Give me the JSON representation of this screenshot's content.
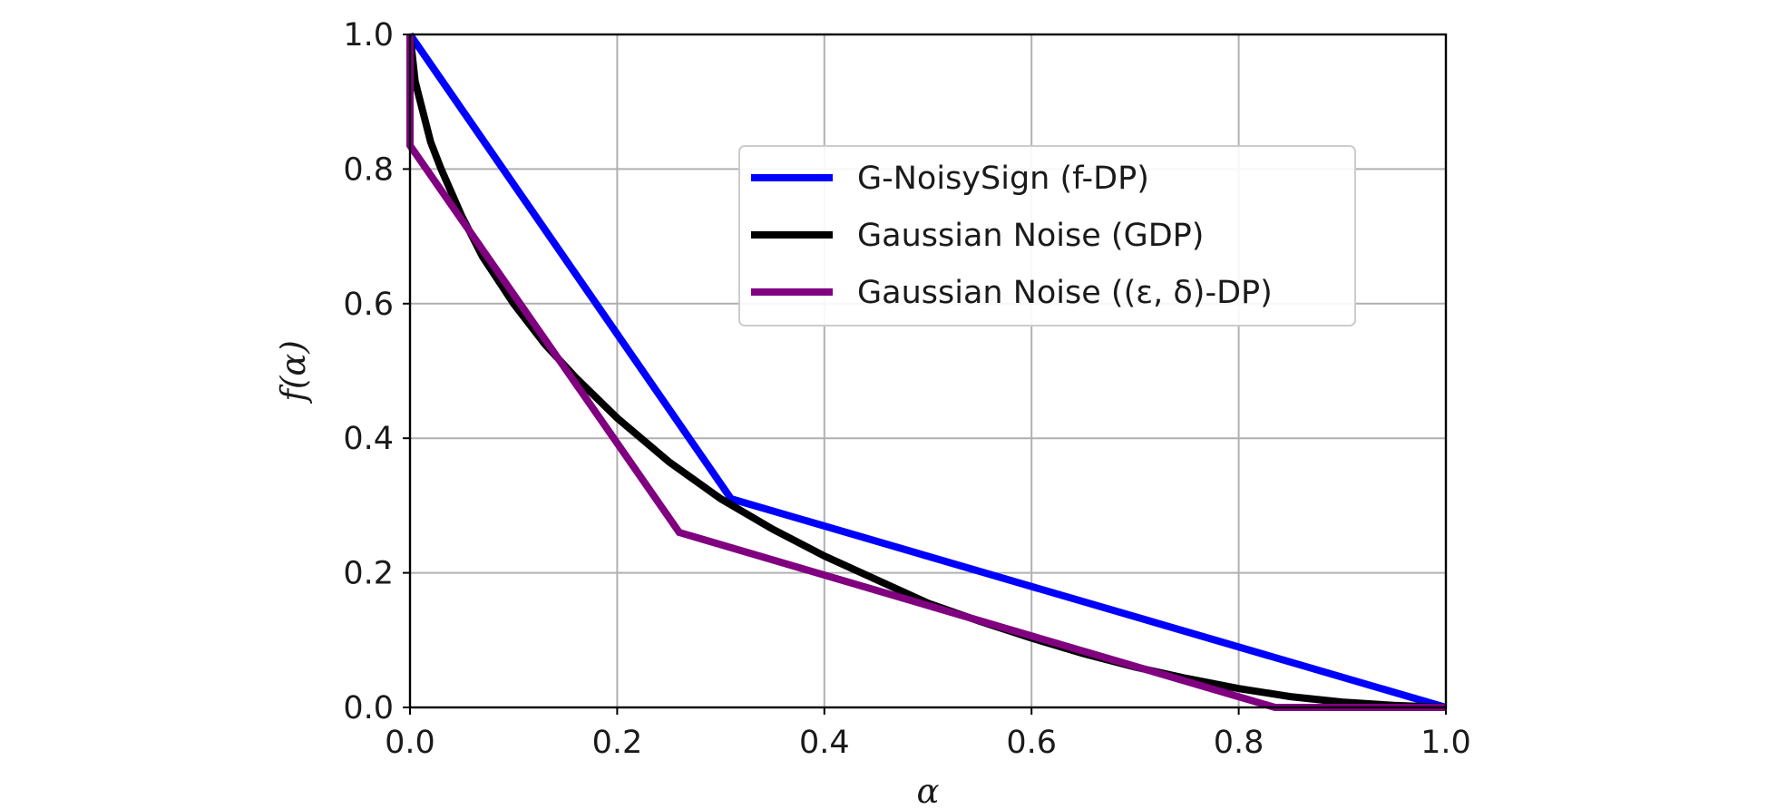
{
  "chart_data": {
    "type": "line",
    "title": "",
    "xlabel": "α",
    "ylabel": "f(α)",
    "xlim": [
      0.0,
      1.0
    ],
    "ylim": [
      0.0,
      1.0
    ],
    "x_ticks": [
      "0.0",
      "0.2",
      "0.4",
      "0.6",
      "0.8",
      "1.0"
    ],
    "y_ticks": [
      "0.0",
      "0.2",
      "0.4",
      "0.6",
      "0.8",
      "1.0"
    ],
    "grid": true,
    "legend_position": "upper-right",
    "series": [
      {
        "name": "G-NoisySign (f-DP)",
        "color": "#0000ff",
        "x": [
          0.0,
          0.31,
          1.0
        ],
        "y": [
          1.0,
          0.31,
          0.0
        ]
      },
      {
        "name": "Gaussian Noise (GDP)",
        "color": "#000000",
        "x": [
          0.0,
          0.005,
          0.01,
          0.02,
          0.03,
          0.05,
          0.07,
          0.1,
          0.13,
          0.16,
          0.2,
          0.25,
          0.3,
          0.35,
          0.4,
          0.45,
          0.5,
          0.55,
          0.6,
          0.65,
          0.7,
          0.75,
          0.8,
          0.85,
          0.9,
          0.95,
          1.0
        ],
        "y": [
          1.0,
          0.93,
          0.9,
          0.84,
          0.8,
          0.73,
          0.67,
          0.6,
          0.54,
          0.49,
          0.43,
          0.365,
          0.31,
          0.265,
          0.225,
          0.19,
          0.155,
          0.128,
          0.103,
          0.08,
          0.06,
          0.043,
          0.028,
          0.016,
          0.008,
          0.003,
          0.0
        ]
      },
      {
        "name": "Gaussian Noise ((ε, δ)-DP)",
        "color": "#800080",
        "x": [
          0.0,
          0.0,
          0.26,
          0.835,
          1.0
        ],
        "y": [
          1.0,
          0.835,
          0.26,
          0.0,
          0.0
        ]
      }
    ]
  }
}
